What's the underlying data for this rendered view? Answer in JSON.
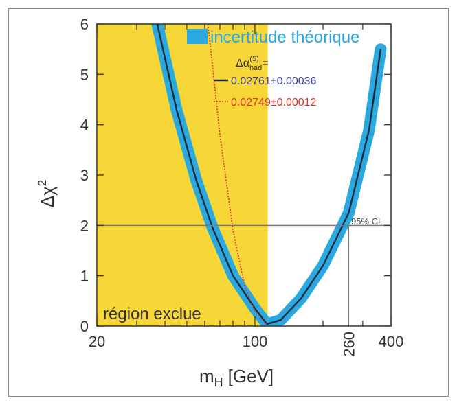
{
  "chart_data": {
    "type": "line",
    "xlabel": "m",
    "xlabel_sub": "H",
    "xlabel_unit": "[GeV]",
    "ylabel": "Δχ",
    "ylabel_sup": "2",
    "x_scale": "log",
    "xlim": [
      20,
      400
    ],
    "ylim": [
      0,
      6
    ],
    "x_ticks": [
      20,
      100,
      260,
      400
    ],
    "y_ticks": [
      0,
      1,
      2,
      3,
      4,
      5,
      6
    ],
    "excluded_region": {
      "x_range": [
        20,
        114
      ],
      "label": "région exclue",
      "color": "#f7d637"
    },
    "threshold": {
      "y": 2,
      "x_at_limit": 260,
      "label": "95% CL"
    },
    "legend": {
      "band_label": "incertitude théorique",
      "param_label": "Δα",
      "param_sup": "(5)",
      "param_sub": "had",
      "param_suffix": " ="
    },
    "series": [
      {
        "name": "0.02761±0.00036",
        "style": "solid",
        "color": "#1a2a3a",
        "label_color": "#3a3f9a",
        "band_color": "#29a9e0",
        "x": [
          37,
          45,
          55,
          65,
          80,
          100,
          113,
          130,
          160,
          200,
          260,
          320,
          360
        ],
        "y": [
          6.0,
          4.3,
          2.9,
          1.95,
          1.0,
          0.35,
          0.04,
          0.12,
          0.55,
          1.2,
          2.25,
          3.9,
          5.5
        ]
      },
      {
        "name": "0.02749±0.00012",
        "style": "dotted",
        "color": "#e0302a",
        "label_color": "#e0302a",
        "x": [
          62,
          70,
          80,
          90,
          100,
          113
        ],
        "y": [
          6.0,
          3.8,
          1.9,
          0.8,
          0.3,
          0.03
        ]
      }
    ]
  }
}
